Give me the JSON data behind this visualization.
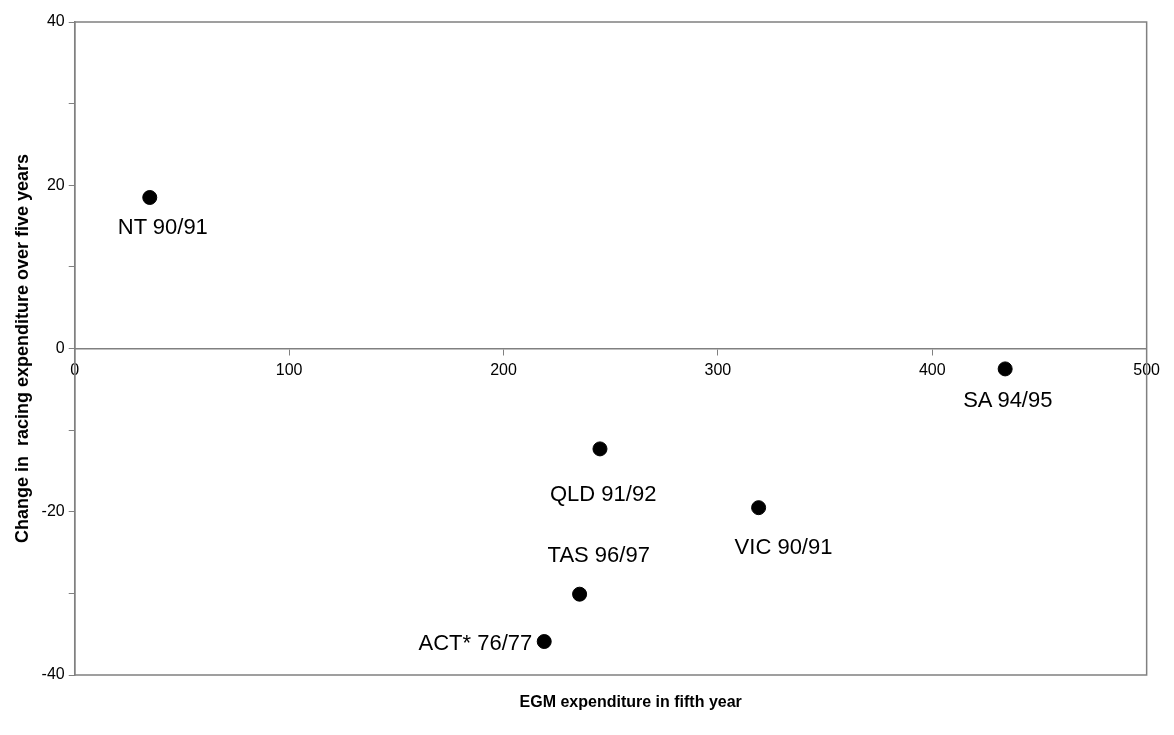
{
  "chart_data": {
    "type": "scatter",
    "xlabel": "EGM expenditure in fifth year",
    "ylabel": "Change in  racing expenditure over five years",
    "x": [
      35,
      245,
      319,
      434,
      235.5,
      219
    ],
    "series": [
      {
        "color": "#000000",
        "values": [
          18.5,
          -12.3,
          -19.5,
          -2.5,
          -30.1,
          -35.9
        ]
      }
    ],
    "annotations": [
      {
        "text": "NT 90/91",
        "x": 35,
        "y": 18.5
      },
      {
        "text": "QLD 91/92",
        "x": 245,
        "y": -12.3
      },
      {
        "text": "VIC 90/91",
        "x": 319,
        "y": -19.5
      },
      {
        "text": "SA 94/95",
        "x": 434,
        "y": -2.5
      },
      {
        "text": "TAS 96/97",
        "x": 235.5,
        "y": -30.1
      },
      {
        "text": "ACT* 76/77",
        "x": 219,
        "y": -35.9
      }
    ],
    "xlim": [
      0,
      500
    ],
    "xticks": [
      0,
      100,
      200,
      300,
      400,
      500
    ],
    "ylim": [
      -40,
      40
    ],
    "yticks": [
      -40,
      {
        "value": -30,
        "label": null
      },
      -20,
      {
        "value": -10,
        "label": null
      },
      0,
      {
        "value": 10,
        "label": null
      },
      20,
      {
        "value": 30,
        "label": null
      },
      40
    ],
    "marker": "circle",
    "grid": false,
    "legend": false
  }
}
